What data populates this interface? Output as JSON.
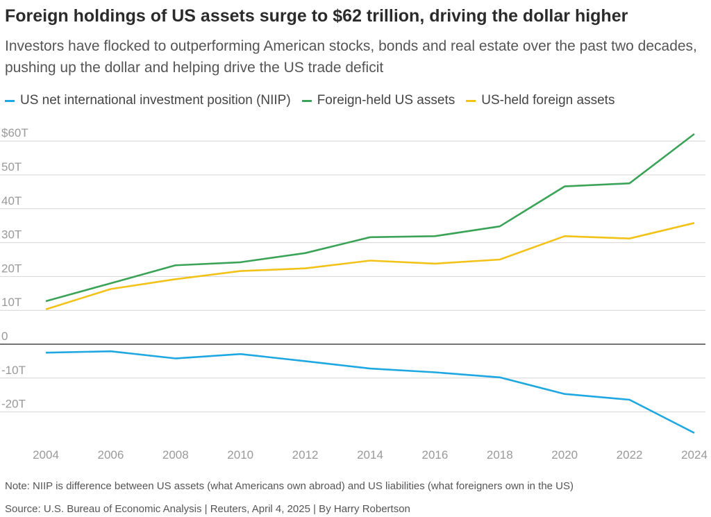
{
  "header": {
    "title": "Foreign holdings of US assets surge to $62 trillion, driving the dollar higher",
    "subtitle": "Investors have flocked to outperforming American stocks, bonds and real estate over the past two decades, pushing up the dollar and helping drive the US trade deficit"
  },
  "footer": {
    "note": "Note: NIIP is difference between US assets (what Americans own abroad) and US liabilities (what foreigners own in the US)",
    "source": "Source: U.S. Bureau of Economic Analysis | Reuters, April 4, 2025 | By Harry Robertson"
  },
  "chart_data": {
    "type": "line",
    "title": "Foreign holdings of US assets surge to $62 trillion, driving the dollar higher",
    "xlabel": "",
    "ylabel": "",
    "x": [
      2004,
      2006,
      2008,
      2010,
      2012,
      2014,
      2016,
      2018,
      2020,
      2022,
      2024
    ],
    "x_tick_labels": [
      "2004",
      "2006",
      "2008",
      "2010",
      "2012",
      "2014",
      "2016",
      "2018",
      "2020",
      "2022",
      "2024"
    ],
    "y_ticks": [
      -20,
      -10,
      0,
      10,
      20,
      30,
      40,
      50,
      60
    ],
    "y_tick_labels": [
      "-20T",
      "-10T",
      "0",
      "10T",
      "20T",
      "30T",
      "40T",
      "50T",
      "$60T"
    ],
    "ylim": [
      -27,
      63
    ],
    "grid": true,
    "legend_position": "top-left",
    "series": [
      {
        "name": "US net international investment position (NIIP)",
        "color": "#1ea7e1",
        "values": [
          -2.5,
          -2.1,
          -4.2,
          -2.9,
          -5.0,
          -7.2,
          -8.3,
          -9.8,
          -14.7,
          -16.4,
          -26.2
        ]
      },
      {
        "name": "Foreign-held US assets",
        "color": "#3aa357",
        "values": [
          12.7,
          18.0,
          23.3,
          24.2,
          26.9,
          31.6,
          31.9,
          34.8,
          46.6,
          47.5,
          62.1
        ]
      },
      {
        "name": "US-held foreign assets",
        "color": "#f2c218",
        "values": [
          10.3,
          16.3,
          19.2,
          21.6,
          22.4,
          24.7,
          23.8,
          25.0,
          31.9,
          31.2,
          35.8
        ]
      }
    ]
  }
}
